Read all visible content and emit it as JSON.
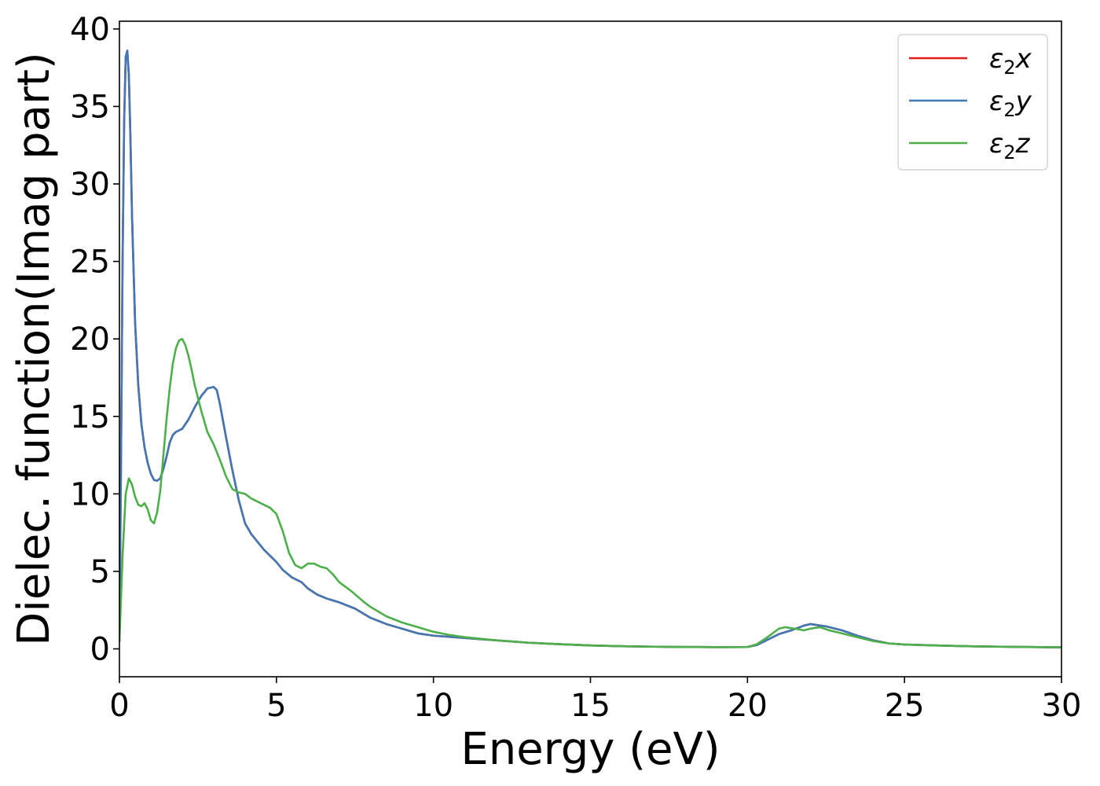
{
  "chart_data": {
    "type": "line",
    "title": "",
    "xlabel": "Energy (eV)",
    "ylabel": "Dielec. function(Imag part)",
    "xlim": [
      0,
      30
    ],
    "ylim": [
      -1.8,
      40.5
    ],
    "xticks": [
      0,
      5,
      10,
      15,
      20,
      25,
      30
    ],
    "yticks": [
      0,
      5,
      10,
      15,
      20,
      25,
      30,
      35,
      40
    ],
    "grid": false,
    "legend_position": "top-right",
    "series": [
      {
        "name": "ε2x",
        "legend_base": "ε",
        "legend_sub": "2",
        "legend_var": "x",
        "color": "#e41a1c",
        "x": [
          0,
          0.05,
          0.1,
          0.15,
          0.2,
          0.25,
          0.3,
          0.35,
          0.4,
          0.5,
          0.6,
          0.7,
          0.8,
          0.9,
          1.0,
          1.1,
          1.2,
          1.3,
          1.4,
          1.5,
          1.6,
          1.7,
          1.8,
          1.9,
          2.0,
          2.2,
          2.4,
          2.6,
          2.8,
          3.0,
          3.1,
          3.2,
          3.4,
          3.6,
          3.8,
          4.0,
          4.2,
          4.4,
          4.6,
          4.8,
          5.0,
          5.2,
          5.5,
          5.8,
          6.0,
          6.3,
          6.6,
          7.0,
          7.5,
          8.0,
          8.5,
          9.0,
          9.5,
          10.0,
          11.0,
          12.0,
          13.0,
          14.0,
          15.0,
          16.0,
          17.0,
          18.0,
          19.0,
          20.0,
          20.3,
          20.6,
          21.0,
          21.4,
          21.8,
          22.0,
          22.5,
          23.0,
          23.5,
          24.0,
          24.5,
          25.0,
          26.0,
          27.0,
          28.0,
          29.0,
          30.0
        ],
        "values": [
          0.5,
          12,
          25,
          34,
          38.2,
          38.6,
          37,
          33,
          28,
          21,
          17,
          14.5,
          13,
          12,
          11.3,
          10.9,
          10.85,
          11.0,
          11.6,
          12.4,
          13.3,
          13.8,
          14.0,
          14.1,
          14.2,
          14.8,
          15.6,
          16.3,
          16.8,
          16.9,
          16.7,
          15.8,
          13.6,
          11.5,
          9.6,
          8.1,
          7.4,
          6.9,
          6.4,
          6.0,
          5.6,
          5.1,
          4.6,
          4.3,
          3.9,
          3.5,
          3.25,
          3.0,
          2.6,
          2.0,
          1.6,
          1.3,
          1.0,
          0.85,
          0.7,
          0.55,
          0.4,
          0.3,
          0.22,
          0.17,
          0.14,
          0.12,
          0.11,
          0.12,
          0.25,
          0.55,
          0.95,
          1.2,
          1.5,
          1.6,
          1.45,
          1.2,
          0.85,
          0.55,
          0.35,
          0.28,
          0.22,
          0.17,
          0.14,
          0.12,
          0.1
        ]
      },
      {
        "name": "ε2y",
        "legend_base": "ε",
        "legend_sub": "2",
        "legend_var": "y",
        "color": "#3f78b5",
        "x": [
          0,
          0.05,
          0.1,
          0.15,
          0.2,
          0.25,
          0.3,
          0.35,
          0.4,
          0.5,
          0.6,
          0.7,
          0.8,
          0.9,
          1.0,
          1.1,
          1.2,
          1.3,
          1.4,
          1.5,
          1.6,
          1.7,
          1.8,
          1.9,
          2.0,
          2.2,
          2.4,
          2.6,
          2.8,
          3.0,
          3.1,
          3.2,
          3.4,
          3.6,
          3.8,
          4.0,
          4.2,
          4.4,
          4.6,
          4.8,
          5.0,
          5.2,
          5.5,
          5.8,
          6.0,
          6.3,
          6.6,
          7.0,
          7.5,
          8.0,
          8.5,
          9.0,
          9.5,
          10.0,
          11.0,
          12.0,
          13.0,
          14.0,
          15.0,
          16.0,
          17.0,
          18.0,
          19.0,
          20.0,
          20.3,
          20.6,
          21.0,
          21.4,
          21.8,
          22.0,
          22.5,
          23.0,
          23.5,
          24.0,
          24.5,
          25.0,
          26.0,
          27.0,
          28.0,
          29.0,
          30.0
        ],
        "values": [
          0.5,
          12,
          25,
          34,
          38.2,
          38.6,
          37,
          33,
          28,
          21,
          17,
          14.5,
          13,
          12,
          11.3,
          10.9,
          10.85,
          11.0,
          11.6,
          12.4,
          13.3,
          13.8,
          14.0,
          14.1,
          14.2,
          14.8,
          15.6,
          16.3,
          16.8,
          16.9,
          16.7,
          15.8,
          13.6,
          11.5,
          9.6,
          8.1,
          7.4,
          6.9,
          6.4,
          6.0,
          5.6,
          5.1,
          4.6,
          4.3,
          3.9,
          3.5,
          3.25,
          3.0,
          2.6,
          2.0,
          1.6,
          1.3,
          1.0,
          0.85,
          0.7,
          0.55,
          0.4,
          0.3,
          0.22,
          0.17,
          0.14,
          0.12,
          0.11,
          0.12,
          0.25,
          0.55,
          0.95,
          1.2,
          1.5,
          1.6,
          1.45,
          1.2,
          0.85,
          0.55,
          0.35,
          0.28,
          0.22,
          0.17,
          0.14,
          0.12,
          0.1
        ]
      },
      {
        "name": "ε2z",
        "legend_base": "ε",
        "legend_sub": "2",
        "legend_var": "z",
        "color": "#4daf4a",
        "x": [
          0,
          0.1,
          0.2,
          0.3,
          0.4,
          0.5,
          0.6,
          0.7,
          0.8,
          0.9,
          1.0,
          1.1,
          1.2,
          1.3,
          1.4,
          1.5,
          1.6,
          1.7,
          1.8,
          1.9,
          2.0,
          2.1,
          2.2,
          2.3,
          2.4,
          2.6,
          2.8,
          3.0,
          3.2,
          3.4,
          3.6,
          3.8,
          4.0,
          4.2,
          4.4,
          4.6,
          4.8,
          5.0,
          5.2,
          5.4,
          5.6,
          5.8,
          6.0,
          6.2,
          6.4,
          6.6,
          6.8,
          7.0,
          7.4,
          7.8,
          8.0,
          8.5,
          9.0,
          9.5,
          10.0,
          10.5,
          11.0,
          12.0,
          13.0,
          14.0,
          15.0,
          16.0,
          17.0,
          18.0,
          19.0,
          20.0,
          20.3,
          20.6,
          21.0,
          21.2,
          21.5,
          21.8,
          22.0,
          22.3,
          22.6,
          23.0,
          23.5,
          24.0,
          24.5,
          25.0,
          26.0,
          27.0,
          28.0,
          29.0,
          30.0
        ],
        "values": [
          0.5,
          6,
          10,
          11,
          10.6,
          9.8,
          9.3,
          9.2,
          9.4,
          9.0,
          8.3,
          8.1,
          8.8,
          10.2,
          12.5,
          14.8,
          16.8,
          18.4,
          19.4,
          19.9,
          20.0,
          19.6,
          18.9,
          18.0,
          17.0,
          15.4,
          14.0,
          13.2,
          12.2,
          11.1,
          10.3,
          10.1,
          10.0,
          9.7,
          9.5,
          9.3,
          9.1,
          8.7,
          7.6,
          6.2,
          5.4,
          5.2,
          5.5,
          5.5,
          5.3,
          5.2,
          4.8,
          4.3,
          3.7,
          3.0,
          2.7,
          2.1,
          1.7,
          1.4,
          1.1,
          0.9,
          0.75,
          0.55,
          0.4,
          0.3,
          0.22,
          0.17,
          0.14,
          0.12,
          0.11,
          0.12,
          0.3,
          0.7,
          1.3,
          1.4,
          1.3,
          1.2,
          1.3,
          1.4,
          1.2,
          1.0,
          0.75,
          0.5,
          0.35,
          0.28,
          0.22,
          0.17,
          0.14,
          0.12,
          0.1
        ]
      }
    ]
  }
}
